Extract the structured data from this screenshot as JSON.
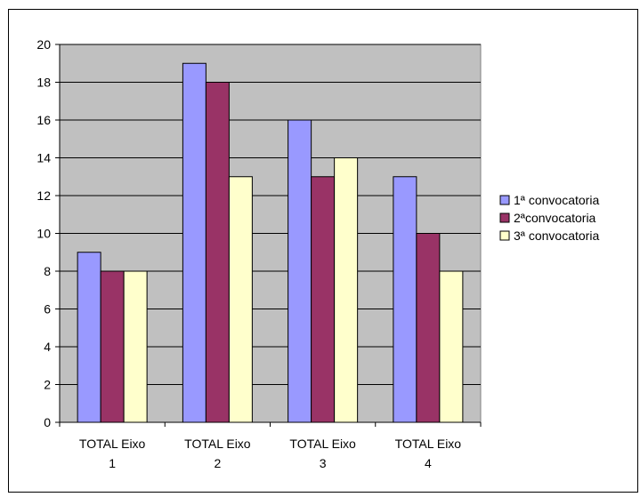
{
  "chart_data": {
    "type": "bar",
    "categories": [
      "TOTAL Eixo 1",
      "TOTAL Eixo 2",
      "TOTAL Eixo 3",
      "TOTAL Eixo 4"
    ],
    "category_lines": [
      [
        "TOTAL Eixo",
        "1"
      ],
      [
        "TOTAL Eixo",
        "2"
      ],
      [
        "TOTAL Eixo",
        "3"
      ],
      [
        "TOTAL Eixo",
        "4"
      ]
    ],
    "series": [
      {
        "name": "1ª convocatoria",
        "color": "#9999ff",
        "values": [
          9,
          19,
          16,
          13
        ]
      },
      {
        "name": "2ªconvocatoria",
        "color": "#993366",
        "values": [
          8,
          18,
          13,
          10
        ]
      },
      {
        "name": "3ª convocatoria",
        "color": "#ffffcc",
        "values": [
          8,
          13,
          14,
          8
        ]
      }
    ],
    "ylim": [
      0,
      20
    ],
    "yticks": [
      0,
      2,
      4,
      6,
      8,
      10,
      12,
      14,
      16,
      18,
      20
    ],
    "plot_background": "#c0c0c0",
    "grid": true,
    "legend_position": "right"
  }
}
